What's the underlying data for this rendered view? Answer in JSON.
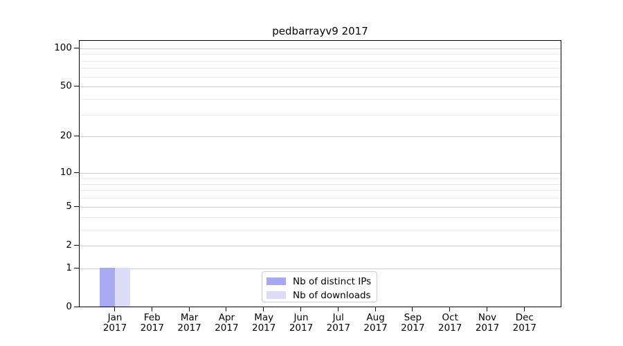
{
  "title": "pedbarrayv9 2017",
  "legend": {
    "items": [
      {
        "label": "Nb of distinct IPs",
        "color": "#a8a8f3"
      },
      {
        "label": "Nb of downloads",
        "color": "#dcdcf8"
      }
    ]
  },
  "chart_data": {
    "type": "bar",
    "title": "pedbarrayv9 2017",
    "categories": [
      "Jan",
      "Feb",
      "Mar",
      "Apr",
      "May",
      "Jun",
      "Jul",
      "Aug",
      "Sep",
      "Oct",
      "Nov",
      "Dec"
    ],
    "category_year": "2017",
    "series": [
      {
        "name": "Nb of distinct IPs",
        "color": "#a8a8f3",
        "values": [
          1,
          0,
          0,
          0,
          0,
          0,
          0,
          0,
          0,
          0,
          0,
          0
        ]
      },
      {
        "name": "Nb of downloads",
        "color": "#dcdcf8",
        "values": [
          1,
          0,
          0,
          0,
          0,
          0,
          0,
          0,
          0,
          0,
          0,
          0
        ]
      }
    ],
    "xlabel": "",
    "ylabel": "",
    "yscale": "log1p",
    "ylim": [
      0,
      116
    ],
    "yticks": [
      0,
      1,
      2,
      5,
      10,
      20,
      50,
      100
    ],
    "yticks_minor": [
      3,
      4,
      6,
      7,
      8,
      9,
      30,
      40,
      60,
      70,
      80,
      90
    ],
    "grid": "horizontal",
    "legend_position": "inside-bottom-center"
  },
  "colors": {
    "background": "#ffffff",
    "axis": "#000000",
    "text": "#000000",
    "grid_major": "#cccccc",
    "grid_minor": "#ebebeb",
    "legend_border": "#cccccc",
    "bar_distinct_ips": "#a8a8f3",
    "bar_downloads": "#dcdcf8"
  }
}
